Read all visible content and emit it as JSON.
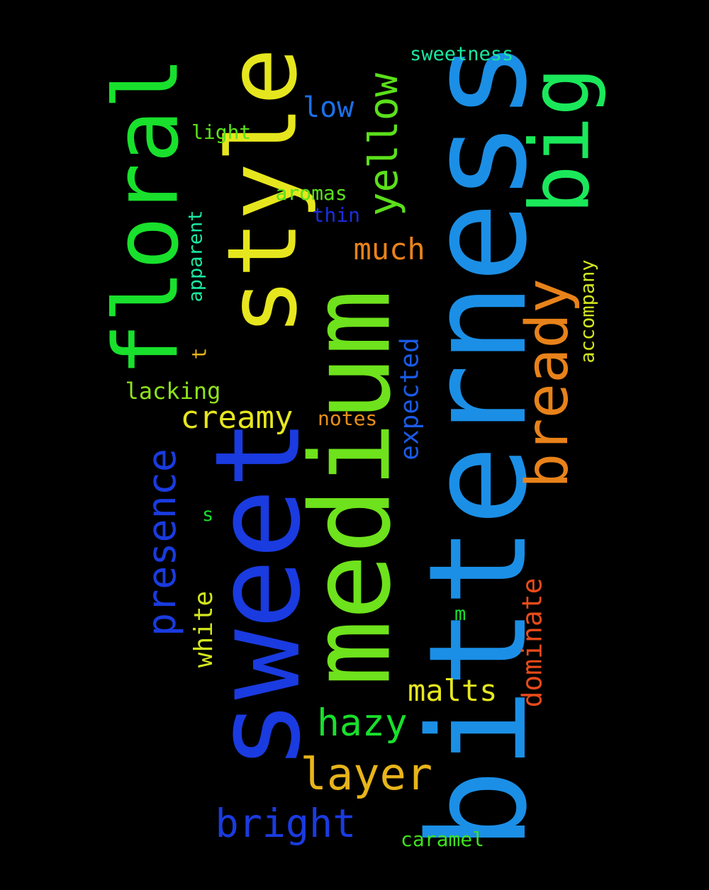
{
  "words": [
    {
      "text": "bitterness",
      "color": "#1b8fe6",
      "vertical": true
    },
    {
      "text": "sweet",
      "color": "#1a3be0",
      "vertical": true
    },
    {
      "text": "medium",
      "color": "#6ee21c",
      "vertical": true
    },
    {
      "text": "style",
      "color": "#e6e61e",
      "vertical": true
    },
    {
      "text": "floral",
      "color": "#18e02c",
      "vertical": true
    },
    {
      "text": "big",
      "color": "#1ae85a",
      "vertical": true
    },
    {
      "text": "bready",
      "color": "#e8821a",
      "vertical": true
    },
    {
      "text": "presence",
      "color": "#1a3be0",
      "vertical": true
    },
    {
      "text": "yellow",
      "color": "#5ae01a",
      "vertical": true
    },
    {
      "text": "layer",
      "color": "#e8b41a",
      "vertical": false
    },
    {
      "text": "bright",
      "color": "#1a3be0",
      "vertical": false
    },
    {
      "text": "hazy",
      "color": "#18e02c",
      "vertical": false
    },
    {
      "text": "creamy",
      "color": "#e6e61e",
      "vertical": false
    },
    {
      "text": "malts",
      "color": "#e6e61e",
      "vertical": false
    },
    {
      "text": "much",
      "color": "#e8821a",
      "vertical": false
    },
    {
      "text": "low",
      "color": "#1b6fe6",
      "vertical": false
    },
    {
      "text": "dominate",
      "color": "#e84a1a",
      "vertical": true
    },
    {
      "text": "expected",
      "color": "#1a5be6",
      "vertical": true
    },
    {
      "text": "white",
      "color": "#d2e61e",
      "vertical": true
    },
    {
      "text": "lacking",
      "color": "#8ee21c",
      "vertical": false
    },
    {
      "text": "notes",
      "color": "#e8901a",
      "vertical": false
    },
    {
      "text": "caramel",
      "color": "#3ee21c",
      "vertical": false
    },
    {
      "text": "sweetness",
      "color": "#1ae8a0",
      "vertical": false
    },
    {
      "text": "accompany",
      "color": "#d2e61e",
      "vertical": true
    },
    {
      "text": "aromas",
      "color": "#5ae01a",
      "vertical": false
    },
    {
      "text": "thin",
      "color": "#1a2ee0",
      "vertical": false
    },
    {
      "text": "light",
      "color": "#5ae01a",
      "vertical": false
    },
    {
      "text": "apparent",
      "color": "#1ae8a0",
      "vertical": true
    },
    {
      "text": "t",
      "color": "#e8b41a",
      "vertical": true
    },
    {
      "text": "s",
      "color": "#18e02c",
      "vertical": false
    },
    {
      "text": "m",
      "color": "#18e02c",
      "vertical": false
    }
  ]
}
